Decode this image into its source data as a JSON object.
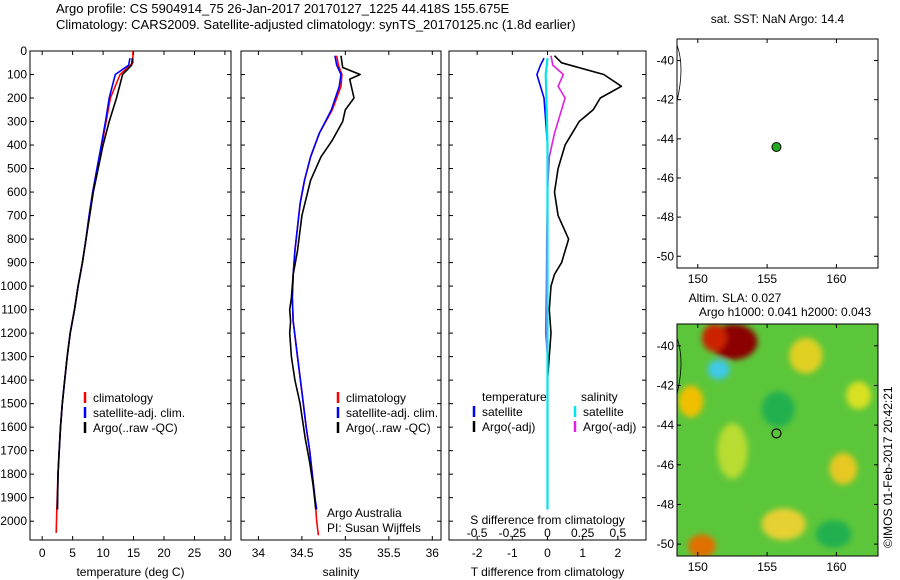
{
  "header": {
    "line1": "Argo profile: CS 5904914_75 26-Jan-2017 20170127_1225 44.418S 155.675E",
    "line2": "Climatology: CARS2009. Satellite-adjusted climatology: synTS_20170125.nc (1.8d earlier)"
  },
  "side_stamp": "©IMOS 01-Feb-2017 20:42:21",
  "colors": {
    "climatology": "#ff0000",
    "satellite": "#0000ff",
    "argo": "#000000",
    "sal_satellite": "#00e5ee",
    "sal_argo": "#e020e0",
    "marker": "#22aa22"
  },
  "chart_data": [
    {
      "id": "temperature",
      "type": "line",
      "xlabel": "temperature (deg C)",
      "ylabel": "",
      "xlim": [
        -2,
        31
      ],
      "ylim": [
        2080,
        0
      ],
      "y_inverted": true,
      "xticks": [
        0,
        5,
        10,
        15,
        20,
        25,
        30
      ],
      "yticks": [
        0,
        100,
        200,
        300,
        400,
        500,
        600,
        700,
        800,
        900,
        1000,
        1100,
        1200,
        1300,
        1400,
        1500,
        1600,
        1700,
        1800,
        1900,
        2000
      ],
      "legend": [
        "climatology",
        "satellite-adj. clim.",
        "Argo(..raw -QC)"
      ],
      "series": [
        {
          "name": "climatology",
          "x": [
            14.9,
            14.9,
            12.8,
            11.2,
            10.5,
            9.8,
            9.0,
            8.3,
            7.7,
            7.2,
            6.6,
            5.9,
            5.3,
            4.6,
            4.1,
            3.7,
            3.3,
            3.0,
            2.8,
            2.6,
            2.4,
            2.3
          ],
          "y": [
            0,
            50,
            100,
            200,
            300,
            400,
            500,
            600,
            700,
            800,
            900,
            1000,
            1100,
            1200,
            1300,
            1400,
            1500,
            1600,
            1700,
            1800,
            1950,
            2050
          ]
        },
        {
          "name": "satellite-adj. clim.",
          "x": [
            14.4,
            14.2,
            12.0,
            11.0,
            10.4,
            9.7,
            9.0,
            8.3,
            7.7,
            7.2,
            6.6,
            5.9,
            5.3,
            4.6,
            4.1,
            3.7,
            3.3,
            3.0,
            2.8,
            2.6,
            2.5
          ],
          "y": [
            30,
            60,
            100,
            200,
            300,
            400,
            500,
            600,
            700,
            800,
            900,
            1000,
            1100,
            1200,
            1300,
            1400,
            1500,
            1600,
            1700,
            1800,
            1950
          ]
        },
        {
          "name": "Argo(..raw -QC)",
          "x": [
            14.8,
            14.7,
            13.2,
            12.2,
            11.0,
            10.0,
            9.2,
            8.4,
            7.8,
            7.2,
            6.6,
            5.9,
            5.3,
            4.6,
            4.1,
            3.7,
            3.3,
            3.0,
            2.8,
            2.6,
            2.5
          ],
          "y": [
            30,
            60,
            100,
            200,
            300,
            400,
            500,
            600,
            700,
            800,
            900,
            1000,
            1100,
            1200,
            1300,
            1400,
            1500,
            1600,
            1700,
            1800,
            1950
          ]
        }
      ]
    },
    {
      "id": "salinity",
      "type": "line",
      "xlabel": "salinity",
      "ylabel": "",
      "xlim": [
        33.8,
        36.1
      ],
      "ylim": [
        2080,
        0
      ],
      "y_inverted": true,
      "xticks": [
        34,
        34.5,
        35,
        35.5,
        36
      ],
      "legend": [
        "climatology",
        "satellite-adj. clim.",
        "Argo(..raw -QC)"
      ],
      "annotation": [
        "Argo Australia",
        "PI: Susan Wijffels"
      ],
      "series": [
        {
          "name": "climatology",
          "x": [
            34.9,
            34.92,
            34.96,
            34.95,
            34.85,
            34.7,
            34.6,
            34.53,
            34.48,
            34.45,
            34.42,
            34.4,
            34.39,
            34.4,
            34.45,
            34.5,
            34.55,
            34.59,
            34.62,
            34.65,
            34.67,
            34.69
          ],
          "y": [
            20,
            60,
            100,
            150,
            250,
            350,
            450,
            550,
            650,
            750,
            850,
            950,
            1050,
            1150,
            1300,
            1450,
            1600,
            1700,
            1800,
            1900,
            2000,
            2060
          ]
        },
        {
          "name": "satellite-adj. clim.",
          "x": [
            34.88,
            34.9,
            34.95,
            34.93,
            34.84,
            34.7,
            34.6,
            34.53,
            34.48,
            34.45,
            34.42,
            34.4,
            34.39,
            34.4,
            34.45,
            34.5,
            34.55,
            34.59,
            34.62,
            34.65,
            34.67
          ],
          "y": [
            20,
            60,
            100,
            150,
            250,
            350,
            450,
            550,
            650,
            750,
            850,
            950,
            1050,
            1150,
            1300,
            1450,
            1600,
            1700,
            1800,
            1900,
            1950
          ]
        },
        {
          "name": "Argo(..raw -QC)",
          "x": [
            34.95,
            34.97,
            35.17,
            35.05,
            35.1,
            35.0,
            34.97,
            34.85,
            34.72,
            34.6,
            34.5,
            34.45,
            34.4,
            34.38,
            34.36,
            34.37,
            34.36,
            34.38,
            34.42,
            34.48,
            34.54,
            34.59,
            34.63,
            34.66
          ],
          "y": [
            20,
            70,
            100,
            120,
            200,
            250,
            300,
            380,
            450,
            550,
            700,
            850,
            950,
            1050,
            1100,
            1150,
            1200,
            1300,
            1400,
            1500,
            1650,
            1750,
            1850,
            1950
          ]
        }
      ]
    },
    {
      "id": "difference",
      "type": "line",
      "xlabel": "T difference from climatology",
      "top_label": "S difference from climatology",
      "ylabel": "",
      "xlim": [
        -2.8,
        2.8
      ],
      "ylim": [
        2080,
        0
      ],
      "y_inverted": true,
      "xticks_T": [
        -2,
        -1,
        0,
        1,
        2
      ],
      "xticks_S": [
        "-0.5",
        "-0.25",
        "0",
        "0.25",
        "0.5"
      ],
      "legend_left": {
        "title": "temperature",
        "items": [
          "satellite",
          "Argo(-adj)"
        ]
      },
      "legend_right": {
        "title": "salinity",
        "items": [
          "satellite",
          "Argo(-adj)"
        ]
      },
      "series": [
        {
          "name": "temperature satellite",
          "x": [
            -0.1,
            -0.2,
            -0.3,
            -0.1,
            0,
            0,
            0,
            0,
            0,
            0,
            0
          ],
          "y": [
            30,
            60,
            100,
            200,
            400,
            600,
            800,
            1000,
            1400,
            1800,
            1950
          ]
        },
        {
          "name": "temperature Argo(-adj)",
          "x": [
            0.2,
            0.4,
            1.6,
            2.1,
            1.5,
            1.3,
            0.9,
            0.7,
            0.5,
            0.3,
            0.2,
            0.3,
            0.6,
            0.4,
            0.2,
            0.1,
            0.05,
            0.1,
            0,
            0,
            0,
            0
          ],
          "y": [
            20,
            50,
            100,
            150,
            200,
            250,
            300,
            350,
            400,
            500,
            600,
            700,
            800,
            900,
            950,
            1000,
            1100,
            1200,
            1400,
            1600,
            1800,
            1950
          ]
        },
        {
          "name": "salinity satellite",
          "x": [
            0,
            -0.02,
            -0.05,
            -0.03,
            0,
            0,
            0,
            0,
            0,
            0
          ],
          "y": [
            30,
            60,
            100,
            200,
            400,
            600,
            800,
            1000,
            1400,
            1950
          ]
        },
        {
          "name": "salinity Argo(-adj)",
          "x": [
            0.1,
            0.15,
            0.45,
            0.3,
            0.5,
            0.2,
            0.05,
            0,
            -0.02,
            -0.03,
            -0.05,
            0,
            0,
            0,
            0
          ],
          "y": [
            20,
            60,
            100,
            150,
            200,
            350,
            450,
            600,
            800,
            1000,
            1200,
            1300,
            1400,
            1600,
            1950
          ]
        }
      ]
    },
    {
      "id": "sst_map",
      "type": "scatter",
      "title": "sat. SST: NaN Argo: 14.4",
      "xlim": [
        148.5,
        163
      ],
      "ylim": [
        -50.6,
        -38.9
      ],
      "xticks": [
        150,
        155,
        160
      ],
      "yticks": [
        -40,
        -42,
        -44,
        -46,
        -48,
        -50
      ],
      "points": [
        {
          "x": 155.675,
          "y": -44.418
        }
      ]
    },
    {
      "id": "sla_map",
      "type": "heatmap",
      "title_line1": "Altim. SLA: 0.027",
      "title_line2": "Argo h1000: 0.041 h2000: 0.043",
      "xlim": [
        148.5,
        163
      ],
      "ylim": [
        -50.6,
        -38.9
      ],
      "xticks": [
        150,
        155,
        160
      ],
      "yticks": [
        -40,
        -42,
        -44,
        -46,
        -48,
        -50
      ],
      "points": [
        {
          "x": 155.675,
          "y": -44.418
        }
      ],
      "features": [
        {
          "kind": "high",
          "x": 152.6,
          "y": -39.8,
          "rx": 1.7,
          "ry": 0.9,
          "color": "#8b0000"
        },
        {
          "kind": "high",
          "x": 151.2,
          "y": -39.6,
          "rx": 0.9,
          "ry": 0.7,
          "color": "#cc2200"
        },
        {
          "kind": "low",
          "x": 151.5,
          "y": -41.2,
          "rx": 0.8,
          "ry": 0.5,
          "color": "#3fc8e6"
        },
        {
          "kind": "mid",
          "x": 149.5,
          "y": -42.8,
          "rx": 0.9,
          "ry": 0.8,
          "color": "#f0c000"
        },
        {
          "kind": "mid",
          "x": 157.8,
          "y": -40.5,
          "rx": 1.2,
          "ry": 0.9,
          "color": "#e0d020"
        },
        {
          "kind": "mid",
          "x": 161.6,
          "y": -42.5,
          "rx": 0.9,
          "ry": 0.7,
          "color": "#d8e020"
        },
        {
          "kind": "mid",
          "x": 160.5,
          "y": -46.2,
          "rx": 1.0,
          "ry": 0.8,
          "color": "#e6c820"
        },
        {
          "kind": "mid",
          "x": 152.5,
          "y": -45.3,
          "rx": 1.1,
          "ry": 1.4,
          "color": "#b8dc30"
        },
        {
          "kind": "mid",
          "x": 156.2,
          "y": -49.0,
          "rx": 1.6,
          "ry": 0.8,
          "color": "#e6d030"
        },
        {
          "kind": "high",
          "x": 150.3,
          "y": -50.1,
          "rx": 1.0,
          "ry": 0.6,
          "color": "#e07000"
        },
        {
          "kind": "low",
          "x": 155.8,
          "y": -43.2,
          "rx": 1.2,
          "ry": 0.9,
          "color": "#20b050"
        },
        {
          "kind": "low",
          "x": 159.8,
          "y": -49.5,
          "rx": 1.3,
          "ry": 0.7,
          "color": "#20b050"
        }
      ]
    }
  ]
}
